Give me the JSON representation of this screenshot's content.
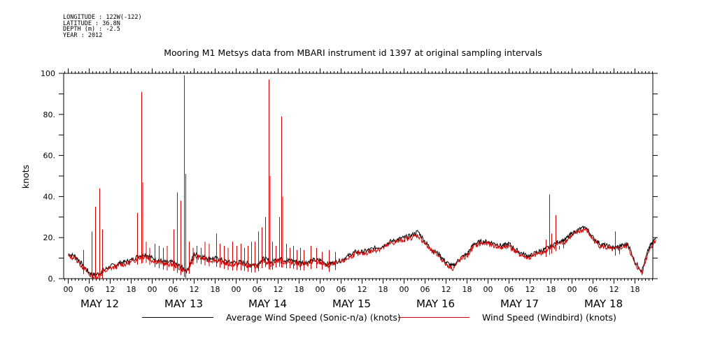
{
  "meta": {
    "longitude": "LONGITUDE : 122W(-122)",
    "latitude": "LATITUDE : 36.8N",
    "depth": "DEPTH (m) : -2.5",
    "year": "YEAR : 2012"
  },
  "chart_data": {
    "type": "line",
    "title": "Mooring M1 Metsys data from MBARI instrument id 1397 at original sampling intervals",
    "ylabel": "knots",
    "xlabel": "",
    "xlim": [
      0,
      168
    ],
    "ylim": [
      0,
      100
    ],
    "y_ticks": [
      0,
      20,
      40,
      60,
      80,
      100
    ],
    "y_tick_labels": [
      "0.",
      "20.",
      "40.",
      "60.",
      "80.",
      "100"
    ],
    "x_hour_labels": [
      "00",
      "06",
      "12",
      "18",
      "00",
      "06",
      "12",
      "18",
      "00",
      "06",
      "12",
      "18",
      "00",
      "06",
      "12",
      "18",
      "00",
      "06",
      "12",
      "18",
      "00",
      "06",
      "12",
      "18",
      "00",
      "06",
      "12",
      "18"
    ],
    "day_labels": [
      "MAY 12",
      "MAY 13",
      "MAY 14",
      "MAY 15",
      "MAY 16",
      "MAY 17",
      "MAY 18"
    ],
    "grid": false,
    "legend_position": "bottom",
    "series": [
      {
        "name": "Average Wind Speed (Sonic-n/a) (knots)",
        "color": "#000000",
        "x": [
          0,
          2,
          4,
          6,
          7,
          8,
          9,
          10,
          11,
          12,
          14,
          15,
          16,
          18,
          20,
          22,
          24,
          26,
          28,
          30,
          32,
          34,
          36,
          38,
          40,
          42,
          44,
          46,
          48,
          50,
          52,
          54,
          56,
          58,
          60,
          62,
          64,
          66,
          68,
          70,
          72,
          74,
          76,
          78,
          80,
          82,
          84,
          86,
          88,
          90,
          92,
          94,
          96,
          98,
          100,
          102,
          104,
          106,
          108,
          110,
          112,
          114,
          116,
          118,
          120,
          122,
          124,
          126,
          128,
          130,
          132,
          134,
          136,
          138,
          140,
          142,
          144,
          146,
          148,
          150,
          152,
          154,
          156,
          158,
          160,
          162,
          164,
          166,
          168
        ],
        "y": [
          12,
          11,
          7,
          3,
          2,
          2,
          3,
          4,
          5,
          6,
          7,
          8,
          8,
          9,
          11,
          12,
          10,
          9,
          8,
          8,
          6,
          4,
          12,
          11,
          10,
          10,
          9,
          8,
          8,
          8,
          7,
          7,
          10,
          8,
          10,
          9,
          9,
          8,
          8,
          9,
          9,
          7,
          8,
          9,
          11,
          13,
          13,
          14,
          15,
          16,
          18,
          19,
          20,
          21,
          23,
          18,
          14,
          12,
          8,
          6,
          10,
          12,
          17,
          18,
          18,
          17,
          16,
          17,
          14,
          12,
          11,
          13,
          14,
          16,
          18,
          19,
          22,
          24,
          25,
          20,
          17,
          16,
          15,
          16,
          17,
          8,
          4,
          15,
          20
        ]
      },
      {
        "name": "Wind Speed (Windbird) (knots)",
        "color": "#cc0000",
        "x": [
          0,
          2,
          4,
          6,
          7,
          8,
          9,
          10,
          11,
          12,
          14,
          15,
          16,
          18,
          20,
          22,
          24,
          26,
          28,
          30,
          32,
          34,
          36,
          38,
          40,
          42,
          44,
          46,
          48,
          50,
          52,
          54,
          56,
          58,
          60,
          62,
          64,
          66,
          68,
          70,
          72,
          74,
          76,
          78,
          80,
          82,
          84,
          86,
          88,
          90,
          92,
          94,
          96,
          98,
          100,
          102,
          104,
          106,
          108,
          110,
          112,
          114,
          116,
          118,
          120,
          122,
          124,
          126,
          128,
          130,
          132,
          134,
          136,
          138,
          140,
          142,
          144,
          146,
          148,
          150,
          152,
          154,
          156,
          158,
          160,
          162,
          164,
          166,
          168
        ],
        "y": [
          11,
          10,
          6,
          2,
          1,
          1,
          2,
          3,
          4,
          5,
          6,
          7,
          7,
          8,
          10,
          11,
          9,
          8,
          7,
          7,
          5,
          3,
          11,
          10,
          9,
          9,
          8,
          7,
          7,
          7,
          6,
          6,
          9,
          7,
          9,
          8,
          8,
          7,
          7,
          8,
          8,
          6,
          7,
          8,
          10,
          12,
          12,
          13,
          14,
          15,
          17,
          18,
          19,
          20,
          21,
          17,
          13,
          11,
          7,
          5,
          9,
          11,
          16,
          17,
          17,
          16,
          15,
          16,
          13,
          11,
          10,
          12,
          13,
          15,
          17,
          18,
          21,
          23,
          24,
          19,
          16,
          15,
          14,
          15,
          16,
          7,
          3,
          14,
          19
        ],
        "spikes": [
          {
            "x": 4.4,
            "y": 14
          },
          {
            "x": 6.8,
            "y": 23
          },
          {
            "x": 7.8,
            "y": 35
          },
          {
            "x": 9,
            "y": 44
          },
          {
            "x": 9.8,
            "y": 24
          },
          {
            "x": 19.8,
            "y": 32
          },
          {
            "x": 21,
            "y": 91
          },
          {
            "x": 21.3,
            "y": 47
          },
          {
            "x": 22.3,
            "y": 18
          },
          {
            "x": 23.3,
            "y": 15
          },
          {
            "x": 24.8,
            "y": 17
          },
          {
            "x": 26,
            "y": 16
          },
          {
            "x": 27.2,
            "y": 15
          },
          {
            "x": 28.3,
            "y": 16
          },
          {
            "x": 30.2,
            "y": 24
          },
          {
            "x": 31.2,
            "y": 42
          },
          {
            "x": 32.2,
            "y": 38
          },
          {
            "x": 33.2,
            "y": 99
          },
          {
            "x": 33.6,
            "y": 51
          },
          {
            "x": 34.6,
            "y": 18
          },
          {
            "x": 35.7,
            "y": 15
          },
          {
            "x": 36.8,
            "y": 16
          },
          {
            "x": 38,
            "y": 15
          },
          {
            "x": 39.1,
            "y": 18
          },
          {
            "x": 40.3,
            "y": 17
          },
          {
            "x": 42.4,
            "y": 22
          },
          {
            "x": 43.4,
            "y": 17
          },
          {
            "x": 44.6,
            "y": 16
          },
          {
            "x": 45.7,
            "y": 15
          },
          {
            "x": 47,
            "y": 18
          },
          {
            "x": 48.2,
            "y": 16
          },
          {
            "x": 49.4,
            "y": 17
          },
          {
            "x": 50.4,
            "y": 15
          },
          {
            "x": 51.4,
            "y": 16
          },
          {
            "x": 52.4,
            "y": 18
          },
          {
            "x": 53.4,
            "y": 18
          },
          {
            "x": 54.4,
            "y": 23
          },
          {
            "x": 55.4,
            "y": 25
          },
          {
            "x": 56.4,
            "y": 30
          },
          {
            "x": 57.4,
            "y": 97
          },
          {
            "x": 57.7,
            "y": 50
          },
          {
            "x": 58.4,
            "y": 18
          },
          {
            "x": 59.4,
            "y": 16
          },
          {
            "x": 60.4,
            "y": 30
          },
          {
            "x": 61,
            "y": 79
          },
          {
            "x": 61.3,
            "y": 40
          },
          {
            "x": 62.4,
            "y": 17
          },
          {
            "x": 63.4,
            "y": 15
          },
          {
            "x": 64.4,
            "y": 16
          },
          {
            "x": 65.4,
            "y": 14
          },
          {
            "x": 66.4,
            "y": 15
          },
          {
            "x": 67.4,
            "y": 14
          },
          {
            "x": 69.4,
            "y": 16
          },
          {
            "x": 71,
            "y": 15
          },
          {
            "x": 72.6,
            "y": 13
          },
          {
            "x": 74.6,
            "y": 14
          },
          {
            "x": 76.4,
            "y": 13
          },
          {
            "x": 136.6,
            "y": 19
          },
          {
            "x": 137.6,
            "y": 41
          },
          {
            "x": 138.2,
            "y": 22
          },
          {
            "x": 139.4,
            "y": 31
          },
          {
            "x": 140.4,
            "y": 16
          },
          {
            "x": 141.6,
            "y": 18
          },
          {
            "x": 156.4,
            "y": 23
          },
          {
            "x": 157.6,
            "y": 16
          }
        ]
      }
    ]
  }
}
